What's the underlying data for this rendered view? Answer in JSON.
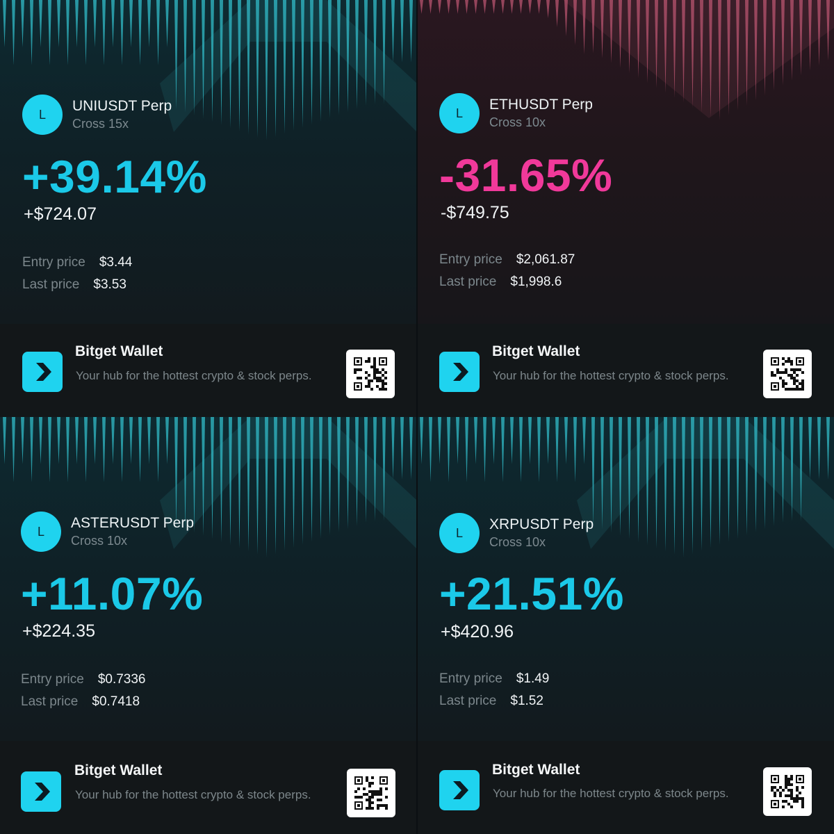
{
  "cards": [
    {
      "theme": "teal",
      "badge": "L",
      "symbol": "UNIUSDT Perp",
      "margin": "Cross 15x",
      "pnl_percent": "+39.14%",
      "pnl_amount": "+$724.07",
      "entry_label": "Entry price",
      "entry_value": "$3.44",
      "last_label": "Last price",
      "last_value": "$3.53",
      "brand": "Bitget Wallet",
      "tagline": "Your hub for the hottest crypto & stock perps."
    },
    {
      "theme": "pink",
      "badge": "L",
      "symbol": "ETHUSDT Perp",
      "margin": "Cross 10x",
      "pnl_percent": "-31.65%",
      "pnl_amount": "-$749.75",
      "entry_label": "Entry price",
      "entry_value": "$2,061.87",
      "last_label": "Last price",
      "last_value": "$1,998.6",
      "brand": "Bitget Wallet",
      "tagline": "Your hub for the hottest crypto & stock perps."
    },
    {
      "theme": "teal",
      "badge": "L",
      "symbol": "ASTERUSDT Perp",
      "margin": "Cross 10x",
      "pnl_percent": "+11.07%",
      "pnl_amount": "+$224.35",
      "entry_label": "Entry price",
      "entry_value": "$0.7336",
      "last_label": "Last price",
      "last_value": "$0.7418",
      "brand": "Bitget Wallet",
      "tagline": "Your hub for the hottest crypto & stock perps."
    },
    {
      "theme": "teal",
      "badge": "L",
      "symbol": "XRPUSDT Perp",
      "margin": "Cross 10x",
      "pnl_percent": "+21.51%",
      "pnl_amount": "+$420.96",
      "entry_label": "Entry price",
      "entry_value": "$1.49",
      "last_label": "Last price",
      "last_value": "$1.52",
      "brand": "Bitget Wallet",
      "tagline": "Your hub for the hottest crypto & stock perps."
    }
  ],
  "colors": {
    "accent_teal": "#1bc9e8",
    "accent_pink": "#f0399a",
    "stripe_teal": "#2fb3bf",
    "stripe_pink": "#b8546f",
    "app_icon": "#1fd3ef"
  },
  "icons": {
    "app": "chevron-right-icon",
    "qr": "qr-code-icon"
  }
}
